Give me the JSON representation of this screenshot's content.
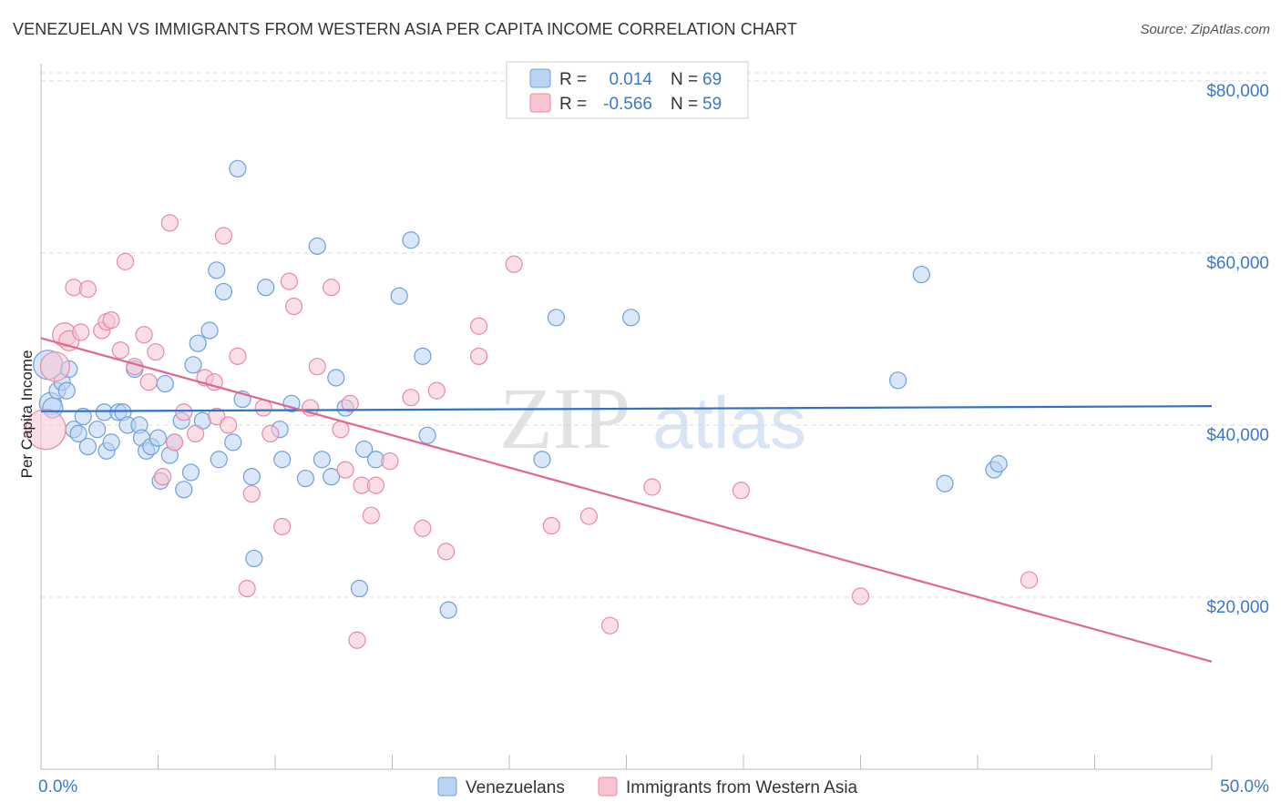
{
  "title": "VENEZUELAN VS IMMIGRANTS FROM WESTERN ASIA PER CAPITA INCOME CORRELATION CHART",
  "source": "Source: ZipAtlas.com",
  "watermark": {
    "zip": "ZIP",
    "atlas": "atlas"
  },
  "colors": {
    "blue_fill": "#b9d3f2",
    "blue_stroke": "#6f9fdb",
    "blue_line": "#2f72c9",
    "pink_fill": "#f8c4d2",
    "pink_stroke": "#e88aa6",
    "pink_line": "#e0678e",
    "tick_text": "#3b78c9",
    "grid": "#dcdcdc"
  },
  "legend": {
    "rows": [
      {
        "r_label": "R =",
        "r_value": "0.014",
        "n_label": "N =",
        "n_value": "69",
        "series": "blue"
      },
      {
        "r_label": "R =",
        "r_value": "-0.566",
        "n_label": "N =",
        "n_value": "59",
        "series": "pink"
      }
    ]
  },
  "bottom_legend": [
    "Venezuelans",
    "Immigrants from Western Asia"
  ],
  "chart_data": {
    "type": "scatter",
    "title": "VENEZUELAN VS IMMIGRANTS FROM WESTERN ASIA PER CAPITA INCOME CORRELATION CHART",
    "xlabel": "",
    "ylabel": "Per Capita Income",
    "xlim": [
      0,
      50
    ],
    "ylim": [
      0,
      82000
    ],
    "x_tick_labels": [
      "0.0%",
      "50.0%"
    ],
    "y_ticks": [
      20000,
      40000,
      60000,
      80000
    ],
    "y_tick_labels": [
      "$20,000",
      "$40,000",
      "$60,000",
      "$80,000"
    ],
    "grid": true,
    "legend_position": "top-center",
    "series": [
      {
        "name": "Venezuelans",
        "color": "#6f9fdb",
        "r": 0.014,
        "n": 69,
        "trend": {
          "x": [
            0,
            50
          ],
          "y": [
            41600,
            42200
          ]
        },
        "points": [
          [
            0.3,
            47000
          ],
          [
            0.4,
            42500
          ],
          [
            0.5,
            42000
          ],
          [
            0.7,
            44000
          ],
          [
            0.9,
            45000
          ],
          [
            1.1,
            44000
          ],
          [
            1.2,
            46500
          ],
          [
            1.4,
            39500
          ],
          [
            1.6,
            39000
          ],
          [
            1.8,
            41000
          ],
          [
            2.0,
            37500
          ],
          [
            2.4,
            39500
          ],
          [
            2.7,
            41500
          ],
          [
            2.8,
            37000
          ],
          [
            3.0,
            38000
          ],
          [
            3.3,
            41500
          ],
          [
            3.5,
            41500
          ],
          [
            3.7,
            40000
          ],
          [
            4.0,
            46500
          ],
          [
            4.2,
            40000
          ],
          [
            4.3,
            38500
          ],
          [
            4.5,
            37000
          ],
          [
            4.7,
            37500
          ],
          [
            5.0,
            38500
          ],
          [
            5.1,
            33500
          ],
          [
            5.3,
            44800
          ],
          [
            5.5,
            36500
          ],
          [
            5.7,
            38000
          ],
          [
            6.0,
            40500
          ],
          [
            6.1,
            32500
          ],
          [
            6.4,
            34500
          ],
          [
            6.5,
            47000
          ],
          [
            6.7,
            49500
          ],
          [
            6.9,
            40500
          ],
          [
            7.2,
            51000
          ],
          [
            7.5,
            58000
          ],
          [
            7.6,
            36000
          ],
          [
            7.8,
            55500
          ],
          [
            8.2,
            38000
          ],
          [
            8.4,
            69800
          ],
          [
            8.6,
            43000
          ],
          [
            9.0,
            34000
          ],
          [
            9.1,
            24500
          ],
          [
            9.6,
            56000
          ],
          [
            10.2,
            39500
          ],
          [
            10.3,
            36000
          ],
          [
            10.7,
            42500
          ],
          [
            11.3,
            33800
          ],
          [
            11.8,
            60800
          ],
          [
            12.0,
            36000
          ],
          [
            12.4,
            34000
          ],
          [
            12.6,
            45500
          ],
          [
            13.0,
            42000
          ],
          [
            13.6,
            21000
          ],
          [
            13.8,
            37200
          ],
          [
            14.3,
            36000
          ],
          [
            15.3,
            55000
          ],
          [
            16.3,
            48000
          ],
          [
            16.5,
            38800
          ],
          [
            17.4,
            18500
          ],
          [
            15.8,
            61500
          ],
          [
            21.4,
            36000
          ],
          [
            22.0,
            52500
          ],
          [
            25.2,
            52500
          ],
          [
            36.6,
            45200
          ],
          [
            37.6,
            57500
          ],
          [
            38.6,
            33200
          ],
          [
            40.7,
            34800
          ],
          [
            40.9,
            35500
          ]
        ],
        "radii": [
          16,
          12,
          11,
          9,
          9,
          9,
          9,
          9,
          9,
          9,
          9,
          9,
          9,
          9,
          9,
          9,
          9,
          9,
          9,
          9,
          9,
          9,
          9,
          9,
          9,
          9,
          9,
          9,
          9,
          9,
          9,
          9,
          9,
          9,
          9,
          9,
          9,
          9,
          9,
          9,
          9,
          9,
          9,
          9,
          9,
          9,
          9,
          9,
          9,
          9,
          9,
          9,
          9,
          9,
          9,
          9,
          9,
          9,
          9,
          9,
          9,
          9,
          9,
          9,
          9,
          9,
          9,
          9,
          9
        ]
      },
      {
        "name": "Immigrants from Western Asia",
        "color": "#e88aa6",
        "r": -0.566,
        "n": 59,
        "trend": {
          "x": [
            0,
            50
          ],
          "y": [
            50100,
            12500
          ]
        },
        "points": [
          [
            0.2,
            39500
          ],
          [
            0.6,
            46800
          ],
          [
            1.0,
            50500
          ],
          [
            1.2,
            49800
          ],
          [
            1.4,
            56000
          ],
          [
            1.7,
            50800
          ],
          [
            2.0,
            55800
          ],
          [
            2.6,
            51000
          ],
          [
            2.8,
            52000
          ],
          [
            3.0,
            52200
          ],
          [
            3.4,
            48700
          ],
          [
            3.6,
            59000
          ],
          [
            4.0,
            46800
          ],
          [
            4.4,
            50500
          ],
          [
            4.6,
            45000
          ],
          [
            4.9,
            48500
          ],
          [
            5.2,
            34000
          ],
          [
            5.5,
            63500
          ],
          [
            5.7,
            38000
          ],
          [
            6.1,
            41500
          ],
          [
            6.6,
            39000
          ],
          [
            7.0,
            45500
          ],
          [
            7.4,
            45000
          ],
          [
            7.5,
            41000
          ],
          [
            7.8,
            62000
          ],
          [
            8.0,
            40000
          ],
          [
            8.4,
            48000
          ],
          [
            8.8,
            21000
          ],
          [
            9.0,
            32000
          ],
          [
            9.5,
            42000
          ],
          [
            9.8,
            39000
          ],
          [
            10.3,
            28200
          ],
          [
            10.6,
            56700
          ],
          [
            10.8,
            53800
          ],
          [
            11.5,
            42000
          ],
          [
            11.8,
            46800
          ],
          [
            12.4,
            56000
          ],
          [
            12.8,
            39500
          ],
          [
            13.0,
            34800
          ],
          [
            13.2,
            42500
          ],
          [
            13.5,
            15000
          ],
          [
            13.7,
            33000
          ],
          [
            14.1,
            29500
          ],
          [
            14.3,
            33000
          ],
          [
            14.9,
            35800
          ],
          [
            15.8,
            43200
          ],
          [
            16.3,
            28000
          ],
          [
            16.9,
            44000
          ],
          [
            17.3,
            25300
          ],
          [
            18.7,
            51500
          ],
          [
            18.7,
            48000
          ],
          [
            20.2,
            58700
          ],
          [
            21.8,
            28300
          ],
          [
            23.4,
            29400
          ],
          [
            24.3,
            16700
          ],
          [
            26.1,
            32800
          ],
          [
            29.9,
            32400
          ],
          [
            35.0,
            20100
          ],
          [
            42.2,
            22000
          ]
        ],
        "radii": [
          22,
          16,
          13,
          11,
          9,
          9,
          9,
          9,
          9,
          9,
          9,
          9,
          9,
          9,
          9,
          9,
          9,
          9,
          9,
          9,
          9,
          9,
          9,
          9,
          9,
          9,
          9,
          9,
          9,
          9,
          9,
          9,
          9,
          9,
          9,
          9,
          9,
          9,
          9,
          9,
          9,
          9,
          9,
          9,
          9,
          9,
          9,
          9,
          9,
          9,
          9,
          9,
          9,
          9,
          9,
          9,
          9,
          9,
          9
        ]
      }
    ]
  }
}
